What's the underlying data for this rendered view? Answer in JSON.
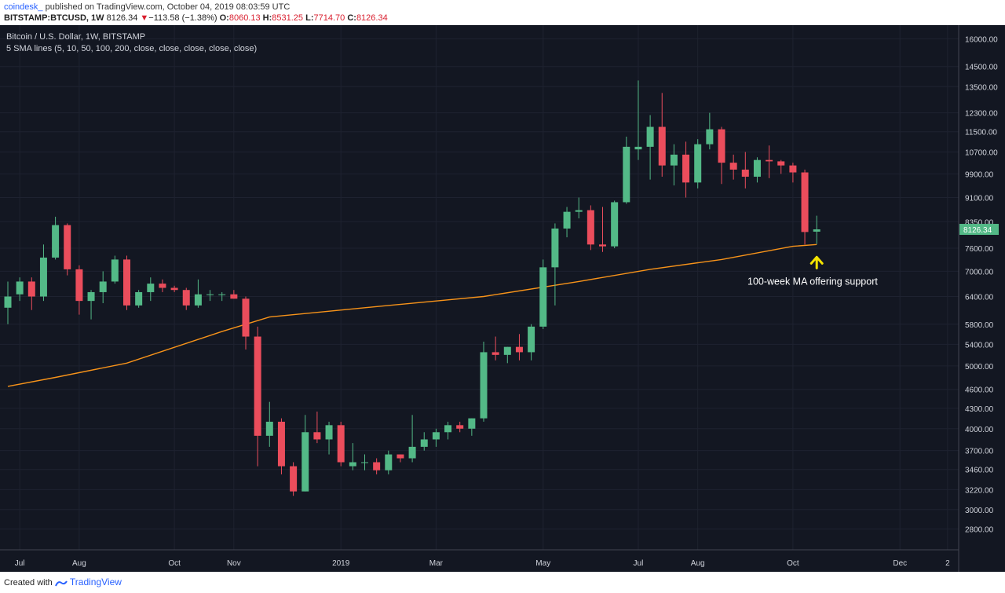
{
  "header": {
    "publisher": "coindesk_",
    "published_text": "published on TradingView.com, October 04, 2019 08:03:59 UTC",
    "symbol": "BITSTAMP:BTCUSD, 1W",
    "last_price": "8126.34",
    "change_arrow": "▼",
    "change": "−113.58 (−1.38%)",
    "o_label": "O:",
    "o_value": "8060.13",
    "h_label": "H:",
    "h_value": "8531.25",
    "l_label": "L:",
    "l_value": "7714.70",
    "c_label": "C:",
    "c_value": "8126.34"
  },
  "footer": {
    "created_with": "Created with",
    "brand": "TradingView"
  },
  "colors": {
    "up": "#53b987",
    "down": "#eb4d5c",
    "ma": "#f7931a",
    "background": "#131722",
    "grid": "#1e2230",
    "annotation_arrow": "#f5e400"
  },
  "chart_data": {
    "type": "candlestick",
    "title": "Bitcoin / U.S. Dollar, 1W, BITSTAMP",
    "subtitle": "5 SMA lines (5, 10, 50, 100, 200, close, close, close, close, close)",
    "y_scale": "log",
    "ylim": [
      2600,
      16800
    ],
    "y_ticks": [
      16000,
      14500,
      13500,
      12300,
      11500,
      10700,
      9900,
      9100,
      8350,
      7600,
      7000,
      6400,
      5800,
      5400,
      5000,
      4600,
      4300,
      4000,
      3700,
      3460,
      3220,
      3000,
      2800
    ],
    "y_tick_labels": [
      "16000.00",
      "14500.00",
      "13500.00",
      "12300.00",
      "11500.00",
      "10700.00",
      "9900.00",
      "9100.00",
      "8350.00",
      "7600.00",
      "7000.00",
      "6400.00",
      "5800.00",
      "5400.00",
      "5000.00",
      "4600.00",
      "4300.00",
      "4000.00",
      "3700.00",
      "3460.00",
      "3220.00",
      "3000.00",
      "2800.00"
    ],
    "x_ticks": [
      {
        "label": "Jul",
        "week": 1
      },
      {
        "label": "Aug",
        "week": 6
      },
      {
        "label": "Oct",
        "week": 14
      },
      {
        "label": "Nov",
        "week": 19
      },
      {
        "label": "2019",
        "week": 28
      },
      {
        "label": "Mar",
        "week": 36
      },
      {
        "label": "May",
        "week": 45
      },
      {
        "label": "Jul",
        "week": 53
      },
      {
        "label": "Aug",
        "week": 58
      },
      {
        "label": "Oct",
        "week": 66
      },
      {
        "label": "Dec",
        "week": 75
      },
      {
        "label": "2",
        "week": 79
      }
    ],
    "candles": [
      {
        "o": 6150,
        "h": 6750,
        "l": 5800,
        "c": 6400
      },
      {
        "o": 6450,
        "h": 6850,
        "l": 6300,
        "c": 6750
      },
      {
        "o": 6750,
        "h": 6850,
        "l": 6100,
        "c": 6400
      },
      {
        "o": 6400,
        "h": 7700,
        "l": 6300,
        "c": 7350
      },
      {
        "o": 7350,
        "h": 8500,
        "l": 7300,
        "c": 8250
      },
      {
        "o": 8250,
        "h": 8300,
        "l": 6900,
        "c": 7050
      },
      {
        "o": 7050,
        "h": 7150,
        "l": 6000,
        "c": 6300
      },
      {
        "o": 6300,
        "h": 6550,
        "l": 5900,
        "c": 6500
      },
      {
        "o": 6500,
        "h": 7000,
        "l": 6250,
        "c": 6750
      },
      {
        "o": 6750,
        "h": 7400,
        "l": 6700,
        "c": 7300
      },
      {
        "o": 7300,
        "h": 7400,
        "l": 6100,
        "c": 6200
      },
      {
        "o": 6200,
        "h": 6550,
        "l": 6150,
        "c": 6500
      },
      {
        "o": 6500,
        "h": 6850,
        "l": 6300,
        "c": 6700
      },
      {
        "o": 6700,
        "h": 6800,
        "l": 6500,
        "c": 6600
      },
      {
        "o": 6600,
        "h": 6650,
        "l": 6500,
        "c": 6550
      },
      {
        "o": 6550,
        "h": 6600,
        "l": 6100,
        "c": 6200
      },
      {
        "o": 6200,
        "h": 6800,
        "l": 6150,
        "c": 6450
      },
      {
        "o": 6450,
        "h": 6550,
        "l": 6300,
        "c": 6450
      },
      {
        "o": 6450,
        "h": 6500,
        "l": 6300,
        "c": 6450
      },
      {
        "o": 6450,
        "h": 6550,
        "l": 6350,
        "c": 6350
      },
      {
        "o": 6350,
        "h": 6400,
        "l": 5300,
        "c": 5550
      },
      {
        "o": 5550,
        "h": 5750,
        "l": 3500,
        "c": 3900
      },
      {
        "o": 3900,
        "h": 4400,
        "l": 3750,
        "c": 4100
      },
      {
        "o": 4100,
        "h": 4150,
        "l": 3400,
        "c": 3500
      },
      {
        "o": 3500,
        "h": 3550,
        "l": 3150,
        "c": 3200
      },
      {
        "o": 3200,
        "h": 4200,
        "l": 3200,
        "c": 3950
      },
      {
        "o": 3950,
        "h": 4250,
        "l": 3800,
        "c": 3850
      },
      {
        "o": 3850,
        "h": 4100,
        "l": 3650,
        "c": 4050
      },
      {
        "o": 4050,
        "h": 4100,
        "l": 3500,
        "c": 3550
      },
      {
        "o": 3500,
        "h": 3800,
        "l": 3450,
        "c": 3550
      },
      {
        "o": 3550,
        "h": 3650,
        "l": 3450,
        "c": 3550
      },
      {
        "o": 3550,
        "h": 3600,
        "l": 3400,
        "c": 3450
      },
      {
        "o": 3450,
        "h": 3700,
        "l": 3400,
        "c": 3650
      },
      {
        "o": 3650,
        "h": 3650,
        "l": 3550,
        "c": 3600
      },
      {
        "o": 3600,
        "h": 4200,
        "l": 3550,
        "c": 3750
      },
      {
        "o": 3750,
        "h": 3950,
        "l": 3700,
        "c": 3850
      },
      {
        "o": 3850,
        "h": 4000,
        "l": 3750,
        "c": 3950
      },
      {
        "o": 3950,
        "h": 4100,
        "l": 3850,
        "c": 4050
      },
      {
        "o": 4050,
        "h": 4100,
        "l": 3950,
        "c": 4000
      },
      {
        "o": 4000,
        "h": 4150,
        "l": 3900,
        "c": 4150
      },
      {
        "o": 4150,
        "h": 5450,
        "l": 4100,
        "c": 5250
      },
      {
        "o": 5250,
        "h": 5550,
        "l": 5100,
        "c": 5200
      },
      {
        "o": 5200,
        "h": 5350,
        "l": 5050,
        "c": 5350
      },
      {
        "o": 5350,
        "h": 5600,
        "l": 5100,
        "c": 5250
      },
      {
        "o": 5250,
        "h": 5800,
        "l": 5100,
        "c": 5750
      },
      {
        "o": 5750,
        "h": 7300,
        "l": 5700,
        "c": 7100
      },
      {
        "o": 7100,
        "h": 8300,
        "l": 6200,
        "c": 8150
      },
      {
        "o": 8150,
        "h": 8800,
        "l": 7900,
        "c": 8650
      },
      {
        "o": 8650,
        "h": 9100,
        "l": 8450,
        "c": 8700
      },
      {
        "o": 8700,
        "h": 8850,
        "l": 7550,
        "c": 7700
      },
      {
        "o": 7700,
        "h": 8800,
        "l": 7500,
        "c": 7650
      },
      {
        "o": 7650,
        "h": 9000,
        "l": 7600,
        "c": 8950
      },
      {
        "o": 8950,
        "h": 11300,
        "l": 8900,
        "c": 10900
      },
      {
        "o": 10800,
        "h": 13800,
        "l": 10400,
        "c": 10900
      },
      {
        "o": 10900,
        "h": 12200,
        "l": 9700,
        "c": 11700
      },
      {
        "o": 11700,
        "h": 13200,
        "l": 9800,
        "c": 10200
      },
      {
        "o": 10200,
        "h": 11000,
        "l": 9500,
        "c": 10600
      },
      {
        "o": 10600,
        "h": 11100,
        "l": 9100,
        "c": 9600
      },
      {
        "o": 9600,
        "h": 11200,
        "l": 9400,
        "c": 11000
      },
      {
        "o": 11000,
        "h": 12300,
        "l": 10800,
        "c": 11600
      },
      {
        "o": 11600,
        "h": 11700,
        "l": 9550,
        "c": 10300
      },
      {
        "o": 10300,
        "h": 10600,
        "l": 9700,
        "c": 10050
      },
      {
        "o": 10050,
        "h": 10700,
        "l": 9400,
        "c": 9800
      },
      {
        "o": 9800,
        "h": 10500,
        "l": 9600,
        "c": 10400
      },
      {
        "o": 10400,
        "h": 10950,
        "l": 9750,
        "c": 10350
      },
      {
        "o": 10350,
        "h": 10400,
        "l": 9900,
        "c": 10200
      },
      {
        "o": 10200,
        "h": 10300,
        "l": 9600,
        "c": 9950
      },
      {
        "o": 9950,
        "h": 10050,
        "l": 7700,
        "c": 8050
      },
      {
        "o": 8060.13,
        "h": 8531.25,
        "l": 7714.7,
        "c": 8126.34
      }
    ],
    "ma_100_week": [
      {
        "week": 0,
        "v": 4650
      },
      {
        "week": 4,
        "v": 4800
      },
      {
        "week": 10,
        "v": 5050
      },
      {
        "week": 18,
        "v": 5650
      },
      {
        "week": 22,
        "v": 5950
      },
      {
        "week": 30,
        "v": 6150
      },
      {
        "week": 40,
        "v": 6400
      },
      {
        "week": 48,
        "v": 6750
      },
      {
        "week": 54,
        "v": 7050
      },
      {
        "week": 60,
        "v": 7300
      },
      {
        "week": 66,
        "v": 7650
      },
      {
        "week": 68,
        "v": 7700
      }
    ],
    "price_label": "8126.34",
    "annotation": "100-week MA offering support"
  }
}
